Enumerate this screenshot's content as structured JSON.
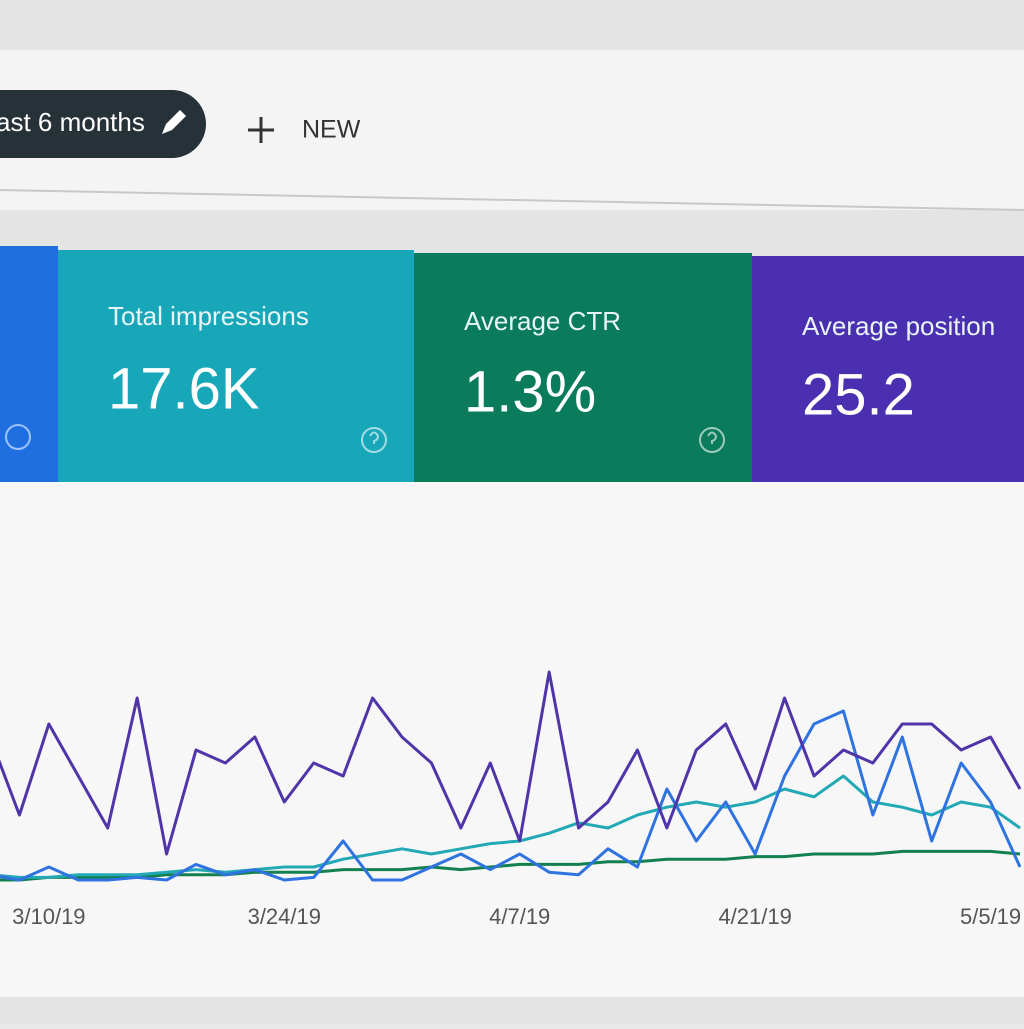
{
  "toolbar": {
    "date_filter": "ast 6 months",
    "new_button": "NEW"
  },
  "cards": [
    {
      "label": "Total impressions",
      "value": "17.6K",
      "color": "#17a7b9"
    },
    {
      "label": "Average CTR",
      "value": "1.3%",
      "color": "#0a7c5b"
    },
    {
      "label": "Average position",
      "value": "25.2",
      "color": "#4a2fb0"
    }
  ],
  "chart_data": {
    "type": "line",
    "categories": [
      null,
      null,
      "3/10/19",
      null,
      null,
      null,
      null,
      null,
      null,
      null,
      "3/24/19",
      null,
      null,
      null,
      null,
      null,
      null,
      null,
      "4/7/19",
      null,
      null,
      null,
      null,
      null,
      null,
      null,
      "4/21/19",
      null,
      null,
      null,
      null,
      null,
      null,
      null,
      "5/5/19",
      null
    ],
    "ylim": [
      0,
      100
    ],
    "series": [
      {
        "color": "#5035a8",
        "values": [
          55,
          25,
          60,
          40,
          20,
          70,
          10,
          50,
          45,
          55,
          30,
          45,
          40,
          70,
          55,
          45,
          20,
          45,
          15,
          80,
          20,
          30,
          50,
          20,
          50,
          60,
          35,
          70,
          40,
          50,
          45,
          60,
          60,
          50,
          55,
          35
        ]
      },
      {
        "color": "#2f73e0",
        "values": [
          2,
          0,
          5,
          0,
          0,
          1,
          0,
          6,
          2,
          4,
          0,
          1,
          15,
          0,
          0,
          5,
          10,
          4,
          10,
          3,
          2,
          12,
          5,
          35,
          15,
          30,
          10,
          40,
          60,
          65,
          25,
          55,
          15,
          45,
          30,
          5
        ]
      },
      {
        "color": "#23a9b5",
        "values": [
          2,
          1,
          1,
          2,
          2,
          2,
          3,
          4,
          3,
          4,
          5,
          5,
          8,
          10,
          12,
          10,
          12,
          14,
          15,
          18,
          22,
          20,
          25,
          28,
          30,
          28,
          30,
          35,
          32,
          40,
          30,
          28,
          25,
          30,
          28,
          20
        ]
      },
      {
        "color": "#13804f",
        "values": [
          0,
          0,
          1,
          1,
          1,
          1,
          2,
          2,
          2,
          3,
          3,
          3,
          4,
          4,
          4,
          5,
          4,
          5,
          6,
          6,
          6,
          7,
          7,
          8,
          8,
          8,
          9,
          9,
          10,
          10,
          10,
          11,
          11,
          11,
          11,
          10
        ]
      }
    ]
  }
}
